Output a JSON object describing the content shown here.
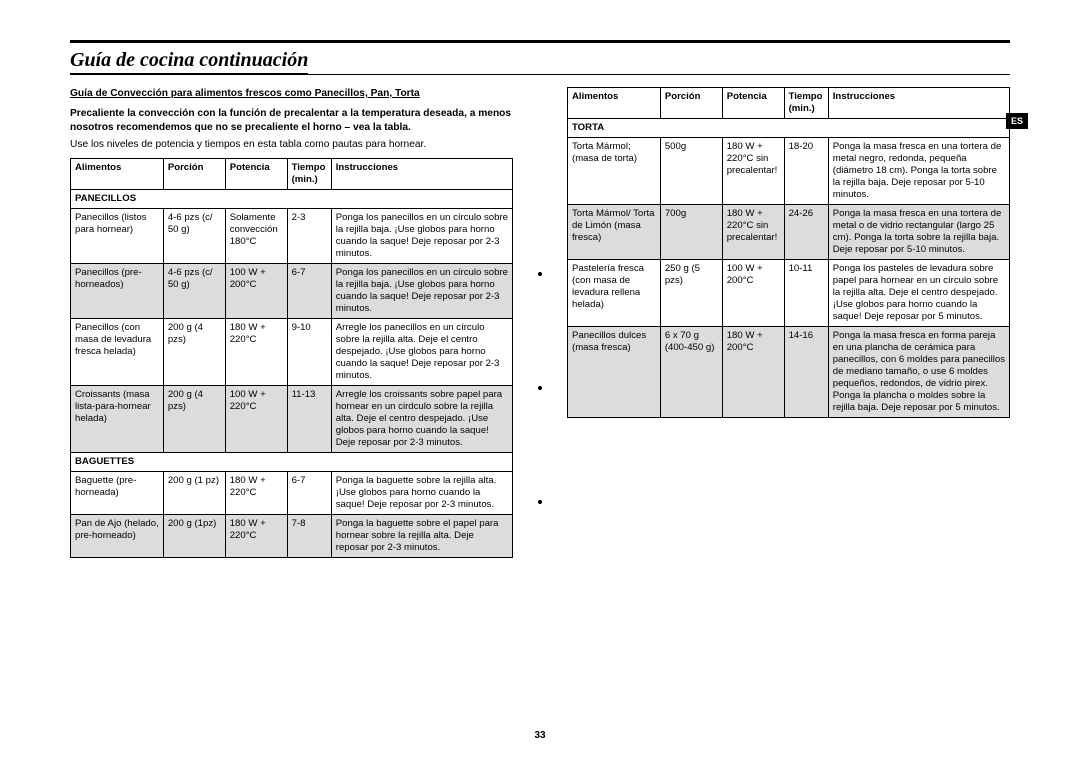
{
  "lang_tab": "ES",
  "page_number": "33",
  "title": "Guía de cocina continuación",
  "intro": {
    "heading": "Guía de Convección para alimentos frescos como Panecillos, Pan, Torta",
    "bold_para": "Precaliente la convección con la función de precalentar a la temperatura deseada, a menos nosotros recomendemos que no se precaliente el horno – vea la tabla.",
    "para": "Use los niveles de potencia y tiempos en esta tabla como pautas para hornear."
  },
  "headers": {
    "alimentos": "Alimentos",
    "porcion": "Porción",
    "potencia": "Potencia",
    "tiempo": "Tiempo (min.)",
    "instrucciones": "Instrucciones"
  },
  "left_sections": [
    {
      "name": "PANECILLOS",
      "rows": [
        {
          "shade": false,
          "al": "Panecillos (listos para hornear)",
          "po": "4-6 pzs (c/ 50 g)",
          "pt": "Solamente convección 180°C",
          "ti": "2-3",
          "in": "Ponga los panecillos en un círculo sobre la rejilla baja. ¡Use globos para horno cuando la saque! Deje reposar por 2-3 minutos."
        },
        {
          "shade": true,
          "al": "Panecillos (pre-horneados)",
          "po": "4-6 pzs (c/ 50 g)",
          "pt": "100 W + 200°C",
          "ti": "6-7",
          "in": "Ponga los panecillos en un círculo sobre la rejilla baja. ¡Use globos para horno cuando la saque! Deje reposar por 2-3 minutos."
        },
        {
          "shade": false,
          "al": "Panecillos (con masa de levadura fresca helada)",
          "po": "200 g (4 pzs)",
          "pt": "180 W + 220°C",
          "ti": "9-10",
          "in": "Arregle los panecillos en un círculo sobre la rejilla alta. Deje el centro despejado. ¡Use globos para horno cuando la saque! Deje reposar por 2-3 minutos."
        },
        {
          "shade": true,
          "al": "Croissants (masa lista-para-hornear helada)",
          "po": "200 g (4 pzs)",
          "pt": "100 W + 220°C",
          "ti": "11-13",
          "in": "Arregle los croissants sobre papel para hornear en un cirdculo sobre la rejilla alta. Deje el centro despejado. ¡Use globos para horno cuando la saque! Deje reposar por 2-3 minutos."
        }
      ]
    },
    {
      "name": "BAGUETTES",
      "rows": [
        {
          "shade": false,
          "al": "Baguette (pre-horneada)",
          "po": "200 g (1 pz)",
          "pt": "180 W + 220°C",
          "ti": "6-7",
          "in": "Ponga la baguette sobre la rejilla alta. ¡Use globos para horno cuando la saque! Deje reposar por 2-3 minutos."
        },
        {
          "shade": true,
          "al": "Pan de Ajo (helado, pre-horneado)",
          "po": "200 g (1pz)",
          "pt": "180 W + 220°C",
          "ti": "7-8",
          "in": "Ponga la baguette sobre el papel para hornear sobre la rejilla alta. Deje reposar por 2-3 minutos."
        }
      ]
    }
  ],
  "right_sections": [
    {
      "name": "TORTA",
      "rows": [
        {
          "shade": false,
          "al": "Torta Mármol; (masa de torta)",
          "po": "500g",
          "pt": "180 W + 220°C sin precalentar!",
          "ti": "18-20",
          "in": "Ponga la masa fresca en una tortera de metal negro, redonda, pequeña (diámetro 18 cm). Ponga la torta sobre la rejilla baja. Deje reposar por 5-10 minutos."
        },
        {
          "shade": true,
          "al": "Torta Mármol/ Torta de Limón (masa fresca)",
          "po": "700g",
          "pt": "180 W + 220°C sin precalentar!",
          "ti": "24-26",
          "in": "Ponga la masa fresca en una tortera de metal o de vidrio rectangular (largo 25 cm). Ponga la torta sobre la rejilla baja. Deje reposar por 5-10 minutos."
        },
        {
          "shade": false,
          "al": "Pastelería fresca (con masa de levadura rellena helada)",
          "po": "250 g (5  pzs)",
          "pt": "100 W + 200°C",
          "ti": "10-11",
          "in": "Ponga los pasteles de levadura sobre papel para hornear en un círculo sobre la rejilla alta. Deje el centro despejado. ¡Use globos para horno cuando la saque! Deje reposar por 5 minutos."
        },
        {
          "shade": true,
          "al": "Panecillos dulces (masa fresca)",
          "po": "6 x 70 g (400-450 g)",
          "pt": "180 W + 200°C",
          "ti": "14-16",
          "in": "Ponga la masa fresca en forma pareja en una plancha de cerámica para panecillos, con 6 moldes para panecillos de mediano tamaño, o use 6 moldes pequeños, redondos, de vidrio pirex. Ponga la plancha o moldes sobre la rejilla baja. Deje reposar por 5 minutos."
        }
      ]
    }
  ]
}
